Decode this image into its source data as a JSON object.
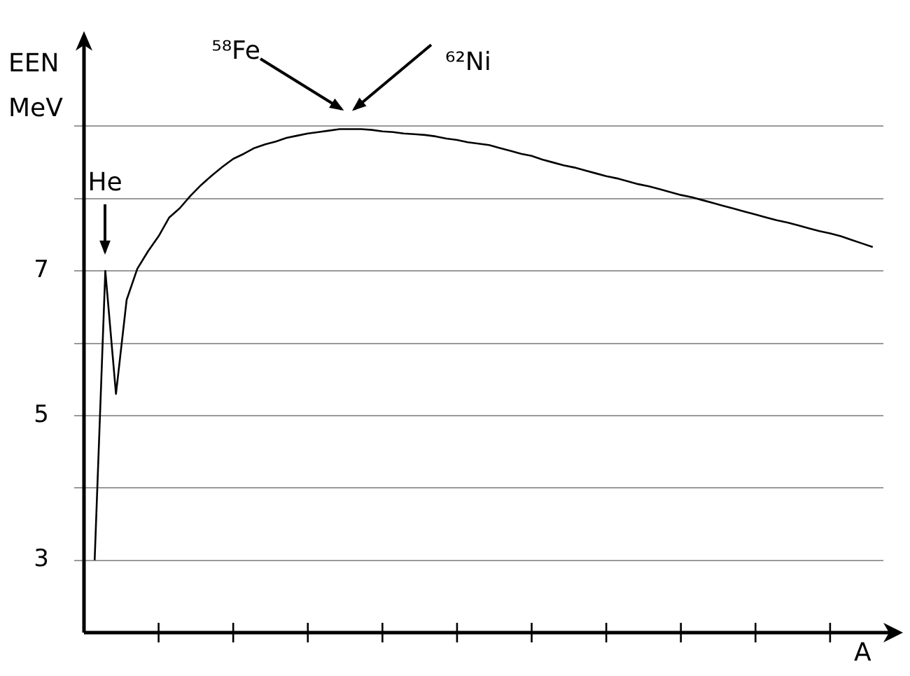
{
  "chart_data": {
    "type": "line",
    "ylabel": "EEN MeV",
    "xlabel": "A",
    "categories": [
      null,
      null,
      null,
      null,
      null,
      null,
      null,
      null,
      null,
      null,
      null,
      null,
      null,
      null,
      null,
      null,
      null,
      null,
      null,
      null,
      null,
      null,
      null,
      null,
      null,
      null,
      null,
      null,
      null,
      null,
      null,
      null,
      null,
      null,
      null,
      null,
      null,
      null,
      null,
      null,
      null,
      null,
      null,
      null,
      null,
      null,
      null,
      null,
      null,
      null,
      null,
      null,
      null,
      null,
      null,
      null,
      null,
      null,
      null,
      null,
      null,
      null,
      null,
      null,
      null,
      null,
      null,
      null,
      null,
      null,
      null,
      null,
      null,
      null
    ],
    "values": [
      3.0,
      7.0,
      5.3,
      6.6,
      7.03,
      7.27,
      7.48,
      7.74,
      7.87,
      8.04,
      8.19,
      8.32,
      8.44,
      8.55,
      8.62,
      8.7,
      8.75,
      8.79,
      8.84,
      8.87,
      8.9,
      8.92,
      8.94,
      8.96,
      8.96,
      8.96,
      8.95,
      8.93,
      8.92,
      8.9,
      8.89,
      8.88,
      8.86,
      8.83,
      8.81,
      8.78,
      8.76,
      8.74,
      8.7,
      8.66,
      8.62,
      8.59,
      8.54,
      8.5,
      8.46,
      8.43,
      8.39,
      8.35,
      8.31,
      8.28,
      8.24,
      8.2,
      8.17,
      8.13,
      8.09,
      8.05,
      8.02,
      7.98,
      7.94,
      7.9,
      7.86,
      7.82,
      7.78,
      7.74,
      7.7,
      7.67,
      7.63,
      7.59,
      7.55,
      7.52,
      7.48,
      7.43,
      7.38,
      7.33
    ],
    "color": "#000000",
    "marker": "none",
    "line_style": "solid",
    "ylim": [
      2,
      10.2
    ],
    "yticks": [
      3,
      {
        "value": 4,
        "label": null
      },
      5,
      {
        "value": 6,
        "label": null
      },
      7,
      {
        "value": 8,
        "label": null
      },
      {
        "value": 9,
        "label": null
      }
    ],
    "tick_labels": "y",
    "grid": "y",
    "legend": false,
    "annotations": [
      "He",
      "⁵⁸Fe",
      "⁶²Ni"
    ]
  }
}
